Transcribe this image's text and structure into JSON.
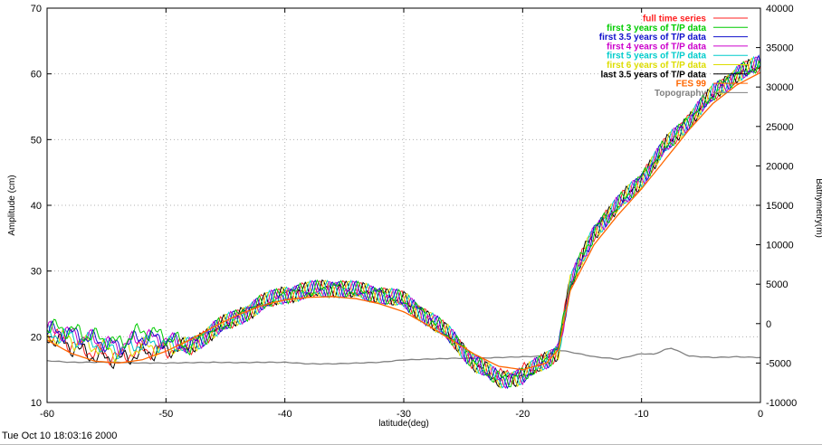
{
  "footer": {
    "timestamp": "Tue Oct 10 18:03:16 2000"
  },
  "colors": {
    "full": "#ff2020",
    "first3": "#00cc00",
    "first35": "#1010cc",
    "first4": "#cc00cc",
    "first5": "#00cccc",
    "first6": "#dddd00",
    "last35": "#000000",
    "fes99": "#ff6600",
    "topo": "#808080"
  },
  "chart_data": {
    "type": "line",
    "xlabel": "latitude(deg)",
    "ylabel": "Amplitude (cm)",
    "y2label": "Bathymetry(m)",
    "xlim": [
      -60,
      0
    ],
    "ylim": [
      10,
      70
    ],
    "y2lim": [
      -10000,
      40000
    ],
    "xticks": [
      "-60",
      "-50",
      "-40",
      "-30",
      "-20",
      "-10",
      "0"
    ],
    "yticks": [
      "10",
      "20",
      "30",
      "40",
      "50",
      "60",
      "70"
    ],
    "y2ticks": [
      "-10000",
      "-5000",
      "0",
      "5000",
      "10000",
      "15000",
      "20000",
      "25000",
      "30000",
      "35000",
      "40000"
    ],
    "grid": true,
    "legend_position": "top-right",
    "series": [
      {
        "name": "full time series",
        "color_key": "full",
        "axis": "left",
        "x": [
          -60,
          -58,
          -56,
          -54,
          -52,
          -50,
          -48,
          -46,
          -44,
          -42,
          -40,
          -38,
          -36,
          -34,
          -32,
          -30,
          -28,
          -26,
          -24,
          -22,
          -20,
          -18,
          -17,
          -16,
          -14,
          -12,
          -10,
          -8,
          -6,
          -4,
          -2,
          0
        ],
        "y": [
          20.5,
          19,
          17.5,
          17,
          18,
          18,
          18.5,
          21,
          23,
          25,
          26.5,
          27,
          27.5,
          27,
          26.5,
          25.5,
          23,
          20,
          16,
          14,
          14.5,
          16.5,
          18,
          28,
          36,
          40,
          44,
          49,
          53,
          57,
          60,
          61.5
        ]
      },
      {
        "name": "first 3 years of T/P data",
        "color_key": "first3",
        "axis": "left",
        "x": [
          -60,
          -58,
          -56,
          -54,
          -52,
          -50,
          -48,
          -46,
          -44,
          -42,
          -40,
          -38,
          -36,
          -34,
          -32,
          -30,
          -28,
          -26,
          -24,
          -22,
          -20,
          -18,
          -17,
          -16,
          -14,
          -12,
          -10,
          -8,
          -6,
          -4,
          -2,
          0
        ],
        "y": [
          21.5,
          21,
          20,
          19,
          21,
          20,
          18.5,
          21,
          23,
          25,
          26.5,
          27,
          27.5,
          27,
          26.5,
          25.5,
          23,
          20,
          16,
          13.5,
          14,
          16.5,
          18,
          28,
          36,
          40,
          44,
          49,
          53,
          57,
          60,
          61.5
        ]
      },
      {
        "name": "first 3.5 years of T/P data",
        "color_key": "first35",
        "axis": "left",
        "x": [
          -60,
          -58,
          -56,
          -54,
          -52,
          -50,
          -48,
          -46,
          -44,
          -42,
          -40,
          -38,
          -36,
          -34,
          -32,
          -30,
          -28,
          -26,
          -24,
          -22,
          -20,
          -18,
          -17,
          -16,
          -14,
          -12,
          -10,
          -8,
          -6,
          -4,
          -2,
          0
        ],
        "y": [
          21,
          20.5,
          19.5,
          18.5,
          20,
          19.5,
          18.5,
          21,
          23,
          25,
          26.5,
          27,
          27.5,
          27,
          26.5,
          25.5,
          23,
          20,
          16,
          13.5,
          14,
          16.5,
          18,
          28,
          36,
          40,
          44,
          49,
          53,
          57,
          60,
          61.5
        ]
      },
      {
        "name": "first 4 years of T/P data",
        "color_key": "first4",
        "axis": "left",
        "x": [
          -60,
          -58,
          -56,
          -54,
          -52,
          -50,
          -48,
          -46,
          -44,
          -42,
          -40,
          -38,
          -36,
          -34,
          -32,
          -30,
          -28,
          -26,
          -24,
          -22,
          -20,
          -18,
          -17,
          -16,
          -14,
          -12,
          -10,
          -8,
          -6,
          -4,
          -2,
          0
        ],
        "y": [
          21,
          20.5,
          19.5,
          18.5,
          20,
          19.5,
          18.5,
          21,
          23,
          25,
          26.5,
          27,
          27.5,
          27,
          26.5,
          25.5,
          23,
          20,
          16,
          13.5,
          14,
          16.5,
          18,
          28,
          36,
          40,
          44,
          49,
          53,
          57,
          60,
          61.5
        ]
      },
      {
        "name": "first 5 years of T/P data",
        "color_key": "first5",
        "axis": "left",
        "x": [
          -60,
          -58,
          -56,
          -54,
          -52,
          -50,
          -48,
          -46,
          -44,
          -42,
          -40,
          -38,
          -36,
          -34,
          -32,
          -30,
          -28,
          -26,
          -24,
          -22,
          -20,
          -18,
          -17,
          -16,
          -14,
          -12,
          -10,
          -8,
          -6,
          -4,
          -2,
          0
        ],
        "y": [
          20.5,
          20,
          19,
          18,
          19,
          19,
          18.5,
          21,
          23,
          25,
          26.5,
          27,
          27.5,
          27,
          26.5,
          25.5,
          23,
          20,
          16,
          13.5,
          14,
          16.5,
          18,
          28,
          36,
          40,
          44,
          49,
          53,
          57,
          60,
          61.5
        ]
      },
      {
        "name": "first 6 years of T/P data",
        "color_key": "first6",
        "axis": "left",
        "x": [
          -60,
          -58,
          -56,
          -54,
          -52,
          -50,
          -48,
          -46,
          -44,
          -42,
          -40,
          -38,
          -36,
          -34,
          -32,
          -30,
          -28,
          -26,
          -24,
          -22,
          -20,
          -18,
          -17,
          -16,
          -14,
          -12,
          -10,
          -8,
          -6,
          -4,
          -2,
          0
        ],
        "y": [
          20,
          19.5,
          18.5,
          17.5,
          18.5,
          18.5,
          18.5,
          21,
          23,
          25,
          26.5,
          27,
          27.5,
          27,
          26.5,
          25.5,
          23,
          20,
          16,
          13.5,
          14,
          16.5,
          18,
          28,
          36,
          40,
          44,
          49,
          53,
          57,
          60,
          61.5
        ]
      },
      {
        "name": "last 3.5 years of T/P data",
        "color_key": "last35",
        "axis": "left",
        "x": [
          -60,
          -58,
          -56,
          -54,
          -52,
          -50,
          -48,
          -46,
          -44,
          -42,
          -40,
          -38,
          -36,
          -34,
          -32,
          -30,
          -28,
          -26,
          -24,
          -22,
          -20,
          -18,
          -17,
          -16,
          -14,
          -12,
          -10,
          -8,
          -6,
          -4,
          -2,
          0
        ],
        "y": [
          20,
          18.5,
          17,
          16.5,
          17.5,
          18,
          18.5,
          21,
          23,
          25,
          26.5,
          27,
          27.5,
          27,
          26.5,
          25.5,
          23,
          20,
          16,
          13.5,
          14,
          16.5,
          18,
          28,
          36,
          40,
          44,
          49,
          53,
          57,
          60,
          61.5
        ]
      },
      {
        "name": "FES 99",
        "color_key": "fes99",
        "axis": "left",
        "x": [
          -60,
          -58,
          -56,
          -54,
          -52,
          -50,
          -48,
          -46,
          -44,
          -42,
          -40,
          -38,
          -36,
          -34,
          -32,
          -30,
          -28,
          -26,
          -24,
          -22,
          -20,
          -18,
          -17,
          -16,
          -14,
          -12,
          -10,
          -8,
          -6,
          -4,
          -2,
          0
        ],
        "y": [
          19.5,
          17.5,
          16.3,
          16,
          16.5,
          17.8,
          19.5,
          21.5,
          23.3,
          24.7,
          25.6,
          26,
          26.1,
          25.8,
          25,
          23.8,
          21.8,
          19.5,
          17.3,
          15.5,
          15,
          16,
          18,
          27,
          34,
          38.5,
          42.5,
          47,
          51.5,
          55.5,
          58.3,
          60.2
        ]
      },
      {
        "name": "Topography",
        "color_key": "topo",
        "axis": "right",
        "x": [
          -60,
          -58,
          -56,
          -54,
          -52,
          -50,
          -48,
          -46,
          -44,
          -42,
          -40,
          -38,
          -36,
          -34,
          -32,
          -30,
          -28,
          -26,
          -24,
          -22,
          -20,
          -18,
          -17.2,
          -16,
          -14,
          -12,
          -10,
          -9,
          -8,
          -7.5,
          -6,
          -4,
          -2,
          0
        ],
        "y": [
          -4700,
          -4900,
          -4900,
          -4900,
          -5000,
          -5000,
          -4950,
          -4900,
          -4950,
          -4900,
          -4900,
          -5100,
          -5100,
          -5000,
          -4900,
          -4600,
          -4500,
          -4400,
          -4400,
          -4300,
          -4200,
          -4100,
          -3300,
          -3600,
          -4200,
          -4500,
          -3800,
          -3900,
          -3300,
          -3100,
          -4100,
          -4300,
          -4200,
          -4300
        ]
      }
    ]
  }
}
